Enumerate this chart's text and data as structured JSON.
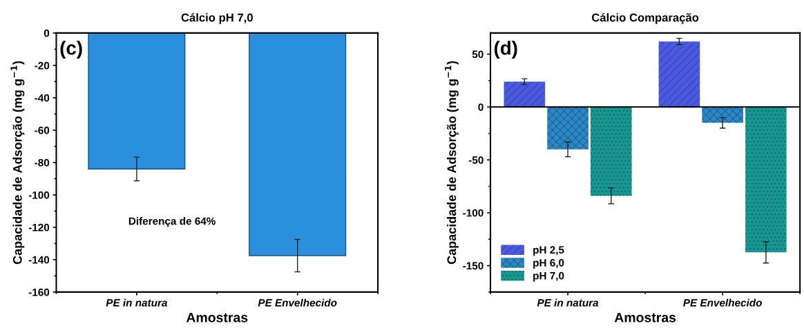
{
  "chart_data": [
    {
      "type": "bar",
      "title": "Cálcio pH 7,0",
      "xlabel": "Amostras",
      "ylabel": "Capacidade de Adsorção (mg g$^{−1}$)",
      "categories": [
        "PE in natura",
        "PE Envelhecido"
      ],
      "series": [
        {
          "color": "#2a8fdc",
          "values": [
            -84,
            -137.5
          ],
          "errors": [
            7.3,
            10
          ]
        }
      ],
      "ylim": [
        -160,
        0
      ],
      "yticks": [
        -160,
        -140,
        -120,
        -100,
        -80,
        -60,
        -40,
        -20,
        0
      ],
      "annotations": [
        "(c)",
        "Diferença de 64%"
      ],
      "grid": false,
      "legend": false
    },
    {
      "type": "bar",
      "title": "Cálcio Comparação",
      "xlabel": "Amostras",
      "ylabel": "Capacidade de Adsorção (mg g$^{−1}$)",
      "categories": [
        "PE in natura",
        "PE Envelhecido"
      ],
      "series": [
        {
          "name": "pH 2,5",
          "color": "#4a5ae0",
          "values": [
            24,
            62
          ],
          "errors": [
            2.7,
            3
          ]
        },
        {
          "name": "pH 6,0",
          "color": "#2a86c4",
          "values": [
            -40,
            -15
          ],
          "errors": [
            7,
            5
          ]
        },
        {
          "name": "pH 7,0",
          "color": "#179590",
          "values": [
            -84,
            -137.5
          ],
          "errors": [
            7.5,
            10
          ]
        }
      ],
      "ylim": [
        -175,
        70
      ],
      "yticks": [
        -150,
        -100,
        -50,
        0,
        50
      ],
      "ref_lines": [
        {
          "axis": "y",
          "value": 0
        }
      ],
      "annotations": [
        "(d)"
      ],
      "grid": false,
      "legend": "bottom left"
    }
  ]
}
